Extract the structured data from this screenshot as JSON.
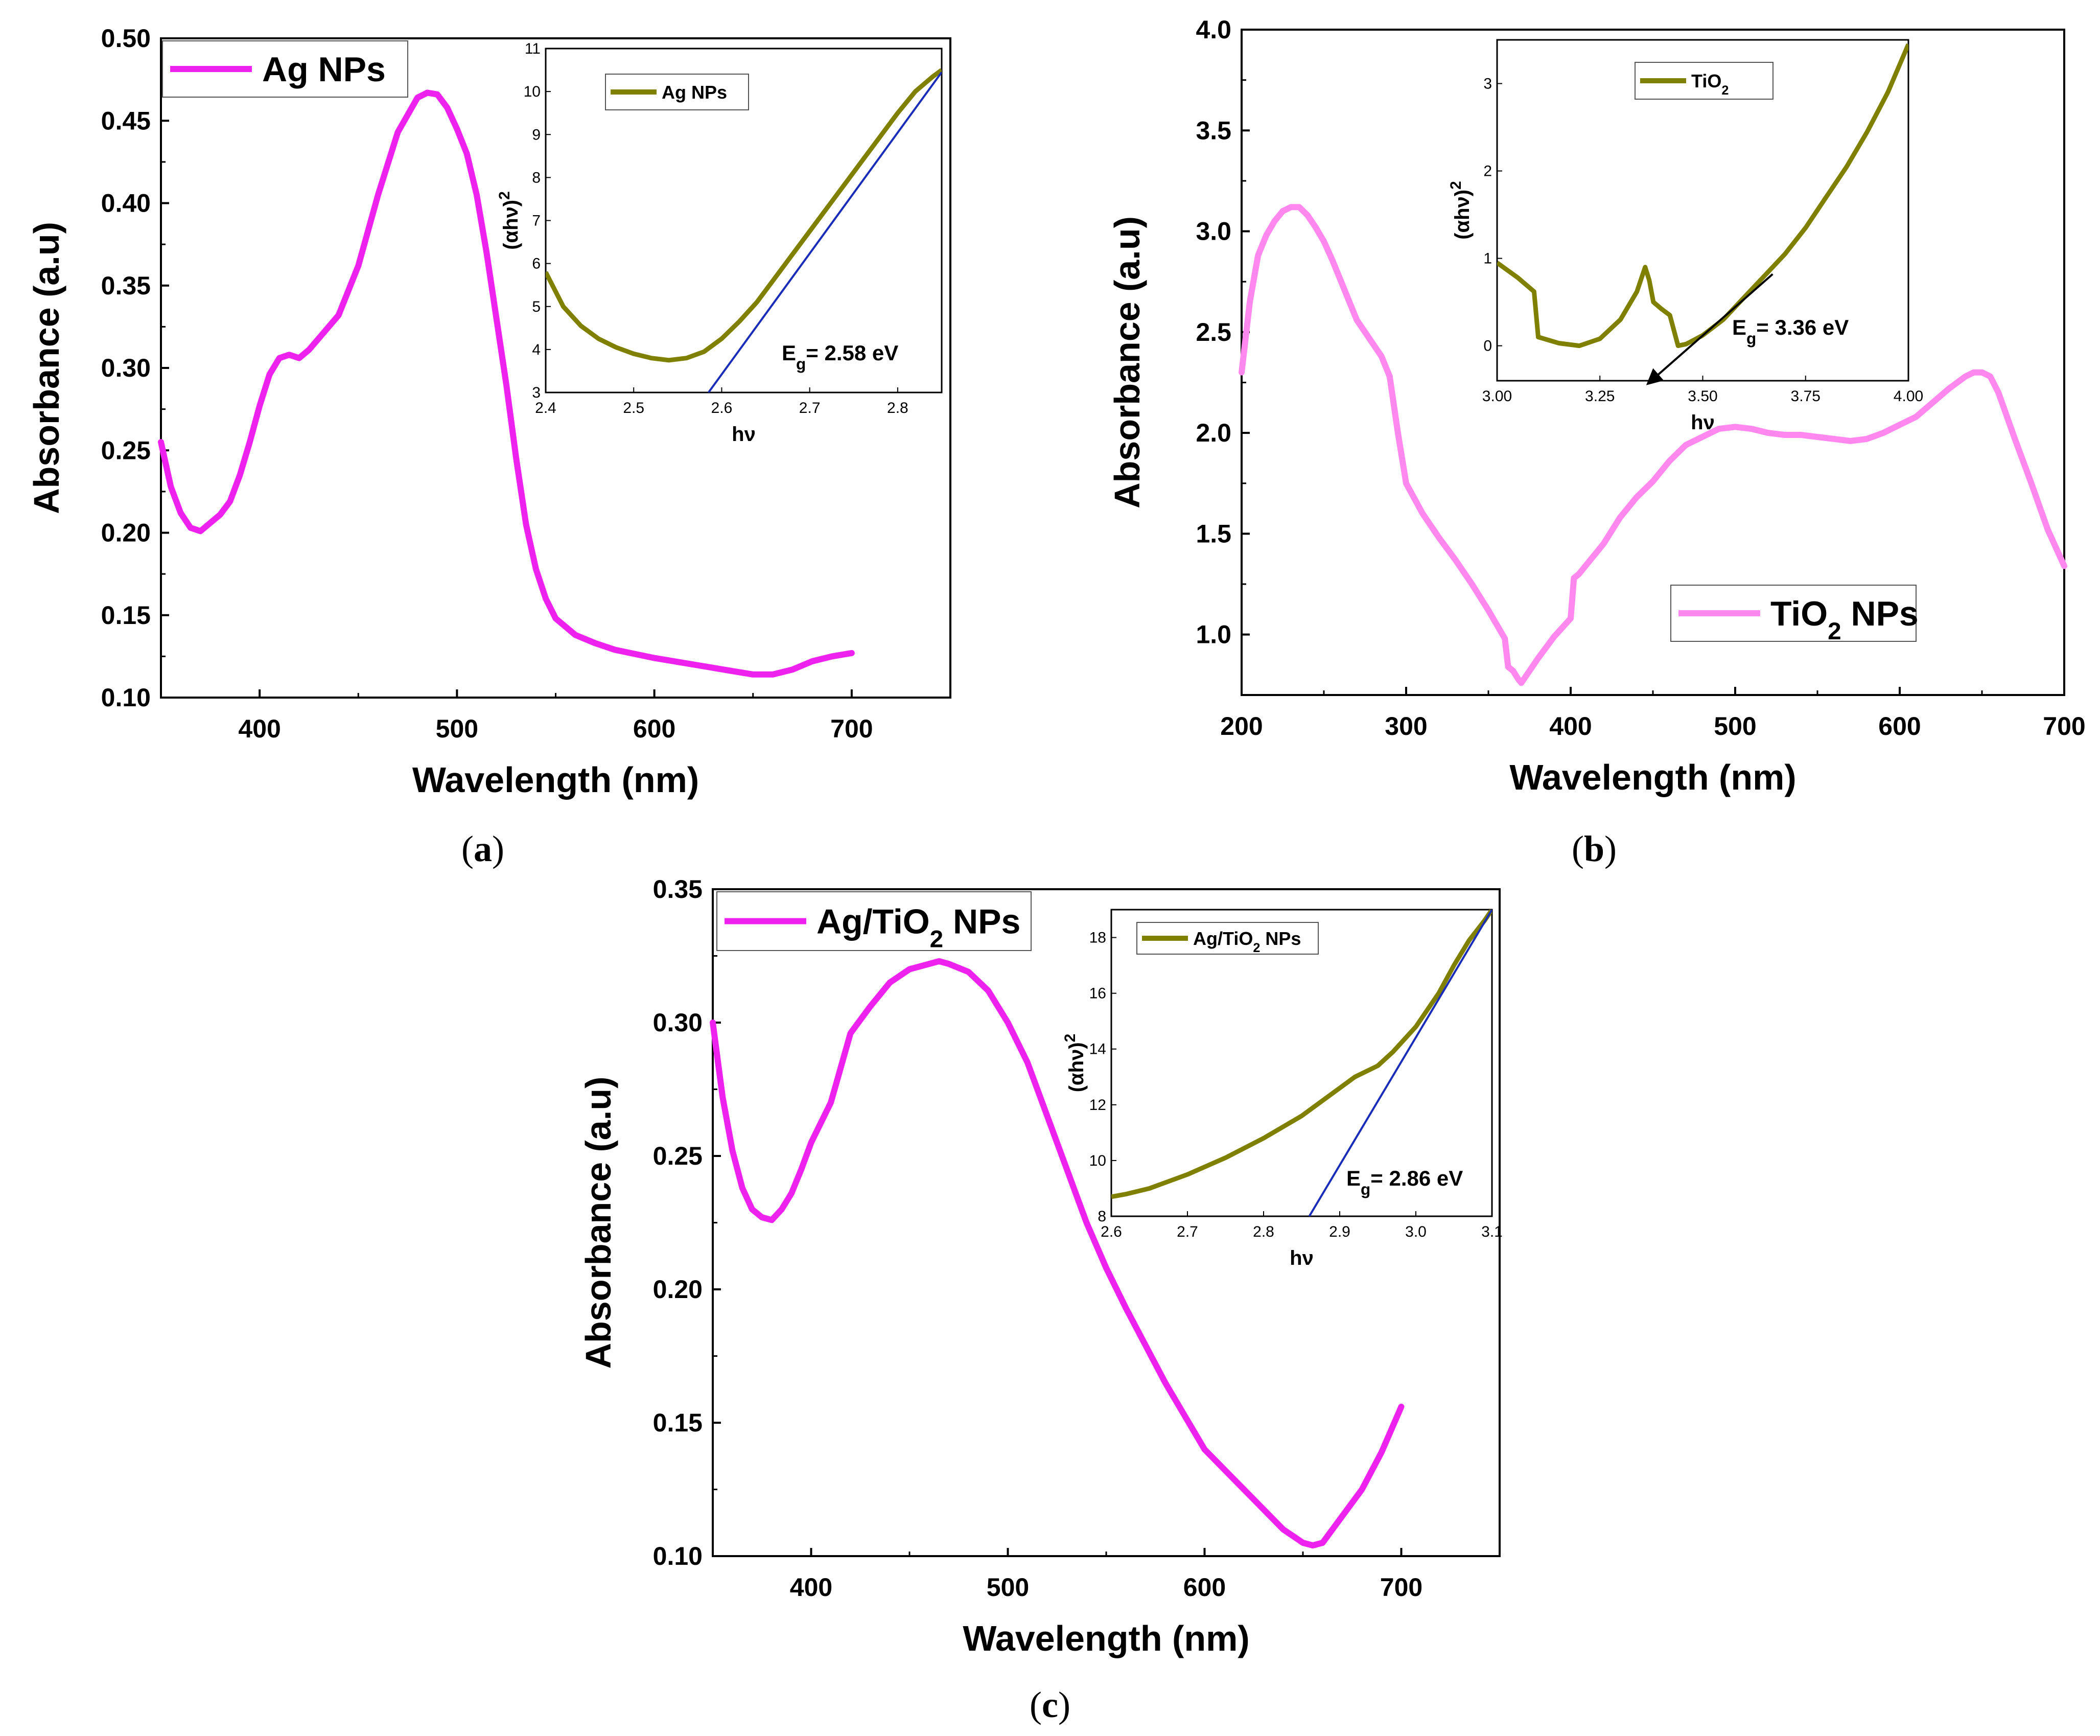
{
  "colors": {
    "main_magenta": "#ee22ee",
    "main_pink": "#ff88ee",
    "inset_olive": "#808000",
    "fit_blue": "#1a2db8",
    "arrow_black": "#000000"
  },
  "panels": {
    "a": {
      "label_open": "(",
      "label_letter": "a",
      "label_close": ")"
    },
    "b": {
      "label_open": "(",
      "label_letter": "b",
      "label_close": ")"
    },
    "c": {
      "label_open": "(",
      "label_letter": "c",
      "label_close": ")"
    }
  },
  "chart_data": [
    {
      "panel": "a",
      "type": "line",
      "xlabel": "Wavelength (nm)",
      "ylabel": "Absorbance (a.u)",
      "xlim": [
        350,
        750
      ],
      "ylim": [
        0.1,
        0.5
      ],
      "xticks": [
        400,
        500,
        600,
        700
      ],
      "yticks": [
        0.1,
        0.15,
        0.2,
        0.25,
        0.3,
        0.35,
        0.4,
        0.45,
        0.5
      ],
      "legend": "top-left",
      "series": [
        {
          "name": "Ag NPs",
          "x": [
            350,
            355,
            360,
            365,
            370,
            375,
            380,
            385,
            390,
            395,
            400,
            405,
            410,
            415,
            420,
            425,
            430,
            440,
            450,
            460,
            470,
            480,
            485,
            490,
            495,
            500,
            505,
            510,
            515,
            520,
            525,
            530,
            535,
            540,
            545,
            550,
            560,
            570,
            580,
            600,
            620,
            640,
            650,
            660,
            670,
            680,
            690,
            700
          ],
          "y": [
            0.255,
            0.228,
            0.212,
            0.203,
            0.201,
            0.206,
            0.211,
            0.219,
            0.235,
            0.255,
            0.277,
            0.296,
            0.306,
            0.308,
            0.306,
            0.311,
            0.318,
            0.332,
            0.362,
            0.405,
            0.443,
            0.464,
            0.467,
            0.466,
            0.458,
            0.445,
            0.43,
            0.405,
            0.37,
            0.33,
            0.29,
            0.245,
            0.205,
            0.178,
            0.16,
            0.148,
            0.138,
            0.133,
            0.129,
            0.124,
            0.12,
            0.116,
            0.114,
            0.114,
            0.117,
            0.122,
            0.125,
            0.127
          ]
        }
      ],
      "inset": {
        "xlabel": "hν",
        "ylabel": "(αhν)2",
        "xlim": [
          2.4,
          2.85
        ],
        "ylim": [
          3,
          11
        ],
        "xticks": [
          2.4,
          2.5,
          2.6,
          2.7,
          2.8
        ],
        "yticks": [
          3,
          4,
          5,
          6,
          7,
          8,
          9,
          10,
          11
        ],
        "legend": "top-left",
        "series": [
          {
            "name": "Ag NPs",
            "x": [
              2.4,
              2.42,
              2.44,
              2.46,
              2.48,
              2.5,
              2.52,
              2.54,
              2.56,
              2.58,
              2.6,
              2.62,
              2.64,
              2.66,
              2.68,
              2.7,
              2.72,
              2.74,
              2.76,
              2.78,
              2.8,
              2.82,
              2.84,
              2.85
            ],
            "y": [
              5.8,
              5.0,
              4.55,
              4.25,
              4.05,
              3.9,
              3.8,
              3.75,
              3.8,
              3.95,
              4.25,
              4.65,
              5.1,
              5.65,
              6.2,
              6.75,
              7.3,
              7.85,
              8.4,
              8.95,
              9.5,
              10.0,
              10.35,
              10.5
            ]
          }
        ],
        "fit_line": {
          "x": [
            2.585,
            2.85
          ],
          "y": [
            3.0,
            10.45
          ]
        },
        "annotation": {
          "prefix": "E",
          "sub": "g",
          "value": "= 2.58 eV"
        }
      }
    },
    {
      "panel": "b",
      "type": "line",
      "xlabel": "Wavelength (nm)",
      "ylabel": "Absorbance (a.u)",
      "xlim": [
        200,
        700
      ],
      "ylim": [
        0.7,
        4.0
      ],
      "xticks": [
        200,
        300,
        400,
        500,
        600,
        700
      ],
      "yticks": [
        1.0,
        1.5,
        2.0,
        2.5,
        3.0,
        3.5,
        4.0
      ],
      "legend": "bottom-right",
      "series": [
        {
          "name": "TiO2 NPs",
          "x": [
            200,
            205,
            210,
            215,
            220,
            225,
            230,
            235,
            240,
            245,
            250,
            255,
            260,
            265,
            270,
            275,
            280,
            285,
            290,
            295,
            300,
            310,
            320,
            330,
            340,
            350,
            360,
            362,
            365,
            368,
            370,
            375,
            380,
            390,
            400,
            402,
            405,
            410,
            420,
            430,
            440,
            450,
            460,
            470,
            480,
            490,
            500,
            510,
            520,
            530,
            540,
            550,
            560,
            570,
            580,
            590,
            600,
            610,
            620,
            630,
            640,
            645,
            650,
            655,
            660,
            670,
            680,
            690,
            700
          ],
          "y": [
            2.3,
            2.65,
            2.88,
            2.98,
            3.05,
            3.1,
            3.12,
            3.12,
            3.08,
            3.02,
            2.95,
            2.86,
            2.76,
            2.66,
            2.56,
            2.5,
            2.44,
            2.38,
            2.28,
            2.0,
            1.75,
            1.6,
            1.48,
            1.37,
            1.25,
            1.12,
            0.98,
            0.84,
            0.82,
            0.78,
            0.76,
            0.82,
            0.88,
            0.99,
            1.08,
            1.28,
            1.3,
            1.35,
            1.45,
            1.58,
            1.68,
            1.76,
            1.86,
            1.94,
            1.98,
            2.02,
            2.03,
            2.02,
            2.0,
            1.99,
            1.99,
            1.98,
            1.97,
            1.96,
            1.97,
            2.0,
            2.04,
            2.08,
            2.15,
            2.22,
            2.28,
            2.3,
            2.3,
            2.28,
            2.2,
            1.97,
            1.75,
            1.52,
            1.34
          ]
        }
      ],
      "inset": {
        "xlabel": "hν",
        "ylabel": "(αhν)2",
        "xlim": [
          3.0,
          4.0
        ],
        "ylim": [
          -0.4,
          3.5
        ],
        "xticks": [
          3.0,
          3.25,
          3.5,
          3.75,
          4.0
        ],
        "xtick_labels": [
          "3.00",
          "3.25",
          "3.50",
          "3.75",
          "4.00"
        ],
        "yticks": [
          0,
          1,
          2,
          3
        ],
        "legend": "top-right",
        "series": [
          {
            "name": "TiO2",
            "x": [
              3.0,
              3.05,
              3.09,
              3.1,
              3.15,
              3.2,
              3.25,
              3.3,
              3.34,
              3.36,
              3.37,
              3.38,
              3.4,
              3.42,
              3.44,
              3.46,
              3.5,
              3.55,
              3.6,
              3.65,
              3.7,
              3.75,
              3.8,
              3.85,
              3.9,
              3.95,
              4.0
            ],
            "y": [
              0.95,
              0.78,
              0.62,
              0.1,
              0.03,
              0.0,
              0.08,
              0.3,
              0.62,
              0.9,
              0.75,
              0.5,
              0.42,
              0.35,
              0.0,
              0.02,
              0.12,
              0.3,
              0.55,
              0.8,
              1.05,
              1.35,
              1.7,
              2.05,
              2.45,
              2.9,
              3.45
            ]
          }
        ],
        "fit_line": {
          "x": [
            3.67,
            3.37
          ],
          "y": [
            0.82,
            -0.42
          ]
        },
        "annotation": {
          "prefix": "E",
          "sub": "g",
          "value": "= 3.36 eV"
        }
      }
    },
    {
      "panel": "c",
      "type": "line",
      "xlabel": "Wavelength (nm)",
      "ylabel": "Absorbance (a.u)",
      "xlim": [
        350,
        750
      ],
      "ylim": [
        0.1,
        0.35
      ],
      "xticks": [
        400,
        500,
        600,
        700
      ],
      "yticks": [
        0.1,
        0.15,
        0.2,
        0.25,
        0.3,
        0.35
      ],
      "legend": "top-left",
      "series": [
        {
          "name": "Ag/TiO2 NPs",
          "x": [
            350,
            355,
            360,
            365,
            370,
            375,
            380,
            385,
            390,
            395,
            400,
            410,
            420,
            430,
            440,
            450,
            460,
            465,
            470,
            480,
            490,
            500,
            510,
            520,
            530,
            540,
            550,
            560,
            580,
            600,
            620,
            640,
            650,
            655,
            660,
            670,
            680,
            690,
            700
          ],
          "y": [
            0.3,
            0.272,
            0.252,
            0.238,
            0.23,
            0.227,
            0.226,
            0.23,
            0.236,
            0.245,
            0.255,
            0.27,
            0.296,
            0.306,
            0.315,
            0.32,
            0.322,
            0.323,
            0.322,
            0.319,
            0.312,
            0.3,
            0.285,
            0.265,
            0.245,
            0.225,
            0.208,
            0.193,
            0.165,
            0.14,
            0.125,
            0.11,
            0.105,
            0.104,
            0.105,
            0.115,
            0.125,
            0.139,
            0.156
          ]
        }
      ],
      "inset": {
        "xlabel": "hν",
        "ylabel": "(αhν)2",
        "xlim": [
          2.6,
          3.1
        ],
        "ylim": [
          8,
          19
        ],
        "xticks": [
          2.6,
          2.7,
          2.8,
          2.9,
          3.0,
          3.1
        ],
        "xtick_labels": [
          "2.6",
          "2.7",
          "2.8",
          "2.9",
          "3.0",
          "3.1"
        ],
        "yticks": [
          8,
          10,
          12,
          14,
          16,
          18
        ],
        "legend": "top-left",
        "series": [
          {
            "name": "Ag/TiO2 NPs",
            "x": [
              2.6,
              2.62,
              2.65,
              2.7,
              2.75,
              2.8,
              2.85,
              2.88,
              2.9,
              2.92,
              2.95,
              2.97,
              3.0,
              3.03,
              3.05,
              3.07,
              3.09,
              3.1
            ],
            "y": [
              8.7,
              8.8,
              9.0,
              9.5,
              10.1,
              10.8,
              11.6,
              12.2,
              12.6,
              13.0,
              13.4,
              13.9,
              14.8,
              16.0,
              17.0,
              17.9,
              18.6,
              19.0
            ]
          }
        ],
        "fit_line": {
          "x": [
            2.86,
            3.1
          ],
          "y": [
            8.0,
            19.0
          ]
        },
        "annotation": {
          "prefix": "E",
          "sub": "g",
          "value": "= 2.86 eV"
        }
      }
    }
  ]
}
